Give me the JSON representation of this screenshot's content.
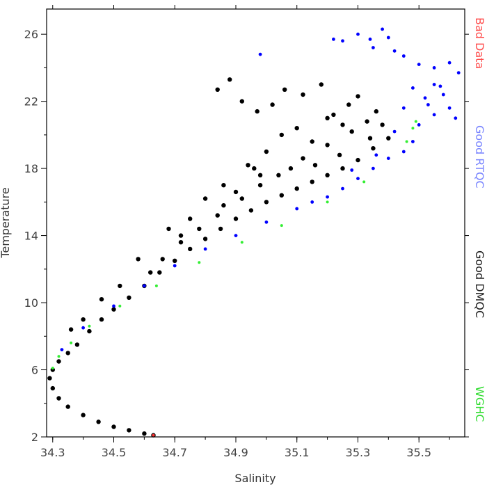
{
  "chart_data": {
    "type": "scatter",
    "xlabel": "Salinity",
    "ylabel": "Temperature",
    "xlim": [
      34.28,
      35.65
    ],
    "ylim": [
      2,
      27.5
    ],
    "x_ticks": [
      "34.3",
      "34.5",
      "34.7",
      "34.9",
      "35.1",
      "35.3",
      "35.5"
    ],
    "y_ticks": [
      "2",
      "6",
      "10",
      "14",
      "18",
      "22",
      "26"
    ],
    "legend_placement": "right-vertical",
    "legend": [
      {
        "label": "Bad Data",
        "color": "#ff4d4d"
      },
      {
        "label": "Good RTQC",
        "color": "#7a86ff"
      },
      {
        "label": "Good DMQC",
        "color": "#222222"
      },
      {
        "label": "WGHC",
        "color": "#33dd33"
      }
    ],
    "series": [
      {
        "name": "Good DMQC",
        "color": "#000000",
        "points": [
          [
            34.63,
            2.1
          ],
          [
            34.6,
            2.2
          ],
          [
            34.55,
            2.4
          ],
          [
            34.5,
            2.6
          ],
          [
            34.45,
            2.9
          ],
          [
            34.4,
            3.3
          ],
          [
            34.35,
            3.8
          ],
          [
            34.32,
            4.3
          ],
          [
            34.3,
            4.9
          ],
          [
            34.29,
            5.5
          ],
          [
            34.3,
            6.0
          ],
          [
            34.32,
            6.5
          ],
          [
            34.35,
            7.0
          ],
          [
            34.38,
            7.5
          ],
          [
            34.42,
            8.3
          ],
          [
            34.46,
            9.0
          ],
          [
            34.5,
            9.6
          ],
          [
            34.55,
            10.3
          ],
          [
            34.6,
            11.0
          ],
          [
            34.65,
            11.8
          ],
          [
            34.7,
            12.5
          ],
          [
            34.75,
            13.2
          ],
          [
            34.8,
            13.8
          ],
          [
            34.85,
            14.4
          ],
          [
            34.9,
            15.0
          ],
          [
            34.95,
            15.5
          ],
          [
            35.0,
            16.0
          ],
          [
            35.05,
            16.4
          ],
          [
            35.1,
            16.8
          ],
          [
            35.15,
            17.2
          ],
          [
            35.2,
            17.6
          ],
          [
            35.25,
            18.0
          ],
          [
            35.3,
            18.5
          ],
          [
            35.35,
            19.2
          ],
          [
            35.4,
            19.8
          ],
          [
            34.62,
            11.8
          ],
          [
            34.66,
            12.6
          ],
          [
            34.72,
            13.6
          ],
          [
            34.78,
            14.4
          ],
          [
            34.84,
            15.2
          ],
          [
            34.92,
            16.2
          ],
          [
            34.98,
            17.0
          ],
          [
            35.04,
            17.6
          ],
          [
            35.12,
            18.6
          ],
          [
            35.2,
            19.4
          ],
          [
            35.28,
            20.2
          ],
          [
            35.33,
            20.8
          ],
          [
            34.84,
            22.7
          ],
          [
            34.88,
            23.3
          ],
          [
            34.92,
            22.0
          ],
          [
            34.97,
            21.4
          ],
          [
            35.02,
            21.8
          ],
          [
            35.06,
            22.7
          ],
          [
            35.12,
            22.4
          ],
          [
            35.18,
            23.0
          ],
          [
            35.22,
            21.2
          ],
          [
            35.27,
            21.8
          ],
          [
            35.3,
            22.3
          ],
          [
            34.94,
            18.2
          ],
          [
            34.98,
            17.6
          ],
          [
            34.96,
            18.0
          ],
          [
            35.05,
            20.0
          ],
          [
            35.15,
            19.6
          ],
          [
            35.25,
            20.6
          ],
          [
            35.36,
            21.4
          ],
          [
            34.8,
            16.2
          ],
          [
            34.86,
            17.0
          ],
          [
            34.75,
            15.0
          ],
          [
            34.68,
            14.4
          ],
          [
            34.58,
            12.6
          ],
          [
            34.52,
            11.0
          ],
          [
            34.46,
            10.2
          ],
          [
            34.4,
            9.0
          ],
          [
            34.36,
            8.4
          ],
          [
            35.0,
            19.0
          ],
          [
            35.1,
            20.4
          ],
          [
            35.2,
            21.0
          ],
          [
            35.34,
            19.8
          ],
          [
            35.38,
            20.6
          ],
          [
            35.08,
            18.0
          ],
          [
            35.16,
            18.2
          ],
          [
            35.24,
            18.8
          ],
          [
            34.9,
            16.6
          ],
          [
            34.86,
            15.8
          ],
          [
            34.72,
            14.0
          ]
        ]
      },
      {
        "name": "Good RTQC",
        "color": "#0000ff",
        "points": [
          [
            35.22,
            25.7
          ],
          [
            35.25,
            25.6
          ],
          [
            35.3,
            26.0
          ],
          [
            35.34,
            25.7
          ],
          [
            35.38,
            26.3
          ],
          [
            35.4,
            25.8
          ],
          [
            35.42,
            25.0
          ],
          [
            35.45,
            24.7
          ],
          [
            35.5,
            24.2
          ],
          [
            35.55,
            24.0
          ],
          [
            35.6,
            24.3
          ],
          [
            35.63,
            23.7
          ],
          [
            35.55,
            23.0
          ],
          [
            35.58,
            22.4
          ],
          [
            35.6,
            21.6
          ],
          [
            35.62,
            21.0
          ],
          [
            35.55,
            21.2
          ],
          [
            35.5,
            20.6
          ],
          [
            35.48,
            19.6
          ],
          [
            35.45,
            19.0
          ],
          [
            35.4,
            18.6
          ],
          [
            35.35,
            18.0
          ],
          [
            35.3,
            17.4
          ],
          [
            35.25,
            16.8
          ],
          [
            35.2,
            16.3
          ],
          [
            35.15,
            16.0
          ],
          [
            35.1,
            15.6
          ],
          [
            35.0,
            14.8
          ],
          [
            34.9,
            14.0
          ],
          [
            34.8,
            13.2
          ],
          [
            34.7,
            12.2
          ],
          [
            34.6,
            11.0
          ],
          [
            34.5,
            9.8
          ],
          [
            34.4,
            8.5
          ],
          [
            34.33,
            7.2
          ],
          [
            34.98,
            24.8
          ],
          [
            35.35,
            25.2
          ],
          [
            35.52,
            22.2
          ],
          [
            35.57,
            22.9
          ],
          [
            35.45,
            21.6
          ],
          [
            35.42,
            20.2
          ],
          [
            35.36,
            18.8
          ],
          [
            35.28,
            17.9
          ],
          [
            35.48,
            22.8
          ],
          [
            35.53,
            21.8
          ]
        ]
      },
      {
        "name": "WGHC",
        "color": "#33ee33",
        "points": [
          [
            35.49,
            20.8
          ],
          [
            35.48,
            20.4
          ],
          [
            35.46,
            19.6
          ],
          [
            35.32,
            17.2
          ],
          [
            35.2,
            16.0
          ],
          [
            35.05,
            14.6
          ],
          [
            34.92,
            13.6
          ],
          [
            34.78,
            12.4
          ],
          [
            34.64,
            11.0
          ],
          [
            34.52,
            9.8
          ],
          [
            34.42,
            8.6
          ],
          [
            34.36,
            7.6
          ],
          [
            34.32,
            6.8
          ],
          [
            34.3,
            6.1
          ]
        ]
      },
      {
        "name": "Bad Data",
        "color": "#ff3333",
        "points": [
          [
            34.63,
            2.1
          ]
        ]
      }
    ]
  }
}
